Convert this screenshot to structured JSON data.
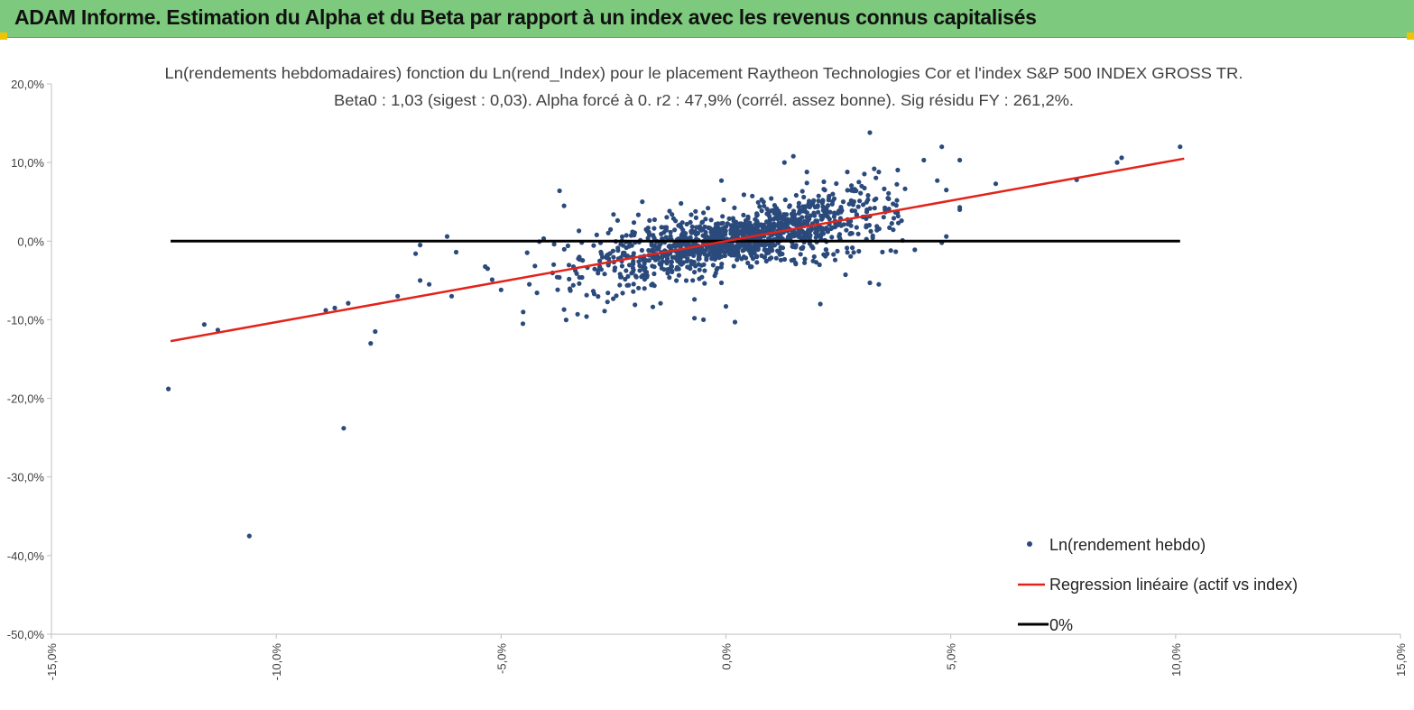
{
  "header": {
    "title": "ADAM Informe. Estimation du Alpha et du Beta par rapport à un index avec les revenus connus capitalisés",
    "color": "#7dc97d"
  },
  "chart_data": {
    "type": "scatter",
    "title_line1": "Ln(rendements hebdomadaires) fonction du Ln(rend_Index) pour le placement Raytheon Technologies Cor et l'index S&P 500 INDEX GROSS TR.",
    "title_line2": "Beta0 : 1,03  (sigest : 0,03).  Alpha forcé à 0. r2 : 47,9% (corrél. assez bonne). Sig résidu FY : 261,2%.",
    "xlim": [
      -0.15,
      0.15
    ],
    "ylim": [
      -0.5,
      0.2
    ],
    "x_ticks": [
      -0.15,
      -0.1,
      -0.05,
      0.0,
      0.05,
      0.1,
      0.15
    ],
    "x_tick_labels": [
      "-15,0%",
      "-10,0%",
      "-5,0%",
      "0,0%",
      "5,0%",
      "10,0%",
      "15,0%"
    ],
    "y_ticks": [
      0.2,
      0.1,
      0.0,
      -0.1,
      -0.2,
      -0.3,
      -0.4,
      -0.5
    ],
    "y_tick_labels": [
      "20,0%",
      "10,0%",
      "0,0%",
      "-10,0%",
      "-20,0%",
      "-30,0%",
      "-40,0%",
      "-50,0%"
    ],
    "beta": 1.03,
    "regression_x_range": [
      -0.1235,
      0.1019
    ],
    "zero_line_x_range": [
      -0.1235,
      0.101
    ],
    "series_colors": {
      "points": "#2b4a7c",
      "regression": "#e3231a",
      "zero": "#000000"
    },
    "legend": {
      "position": "bottom-right",
      "points": "Ln(rendement hebdo)",
      "regression": "Regression linéaire (actif vs index)",
      "zero": "0%"
    },
    "outliers": [
      [
        -0.124,
        -0.188
      ],
      [
        -0.106,
        -0.375
      ],
      [
        -0.085,
        -0.238
      ],
      [
        -0.116,
        -0.106
      ],
      [
        -0.113,
        -0.113
      ],
      [
        -0.079,
        -0.13
      ],
      [
        -0.078,
        -0.115
      ],
      [
        -0.089,
        -0.088
      ],
      [
        -0.087,
        -0.085
      ],
      [
        -0.084,
        -0.079
      ],
      [
        -0.073,
        -0.07
      ],
      [
        -0.069,
        -0.016
      ],
      [
        -0.068,
        -0.005
      ],
      [
        -0.068,
        -0.05
      ],
      [
        -0.066,
        -0.055
      ],
      [
        -0.062,
        0.006
      ],
      [
        -0.061,
        -0.07
      ],
      [
        -0.06,
        -0.014
      ],
      [
        -0.053,
        -0.035
      ],
      [
        -0.052,
        -0.049
      ],
      [
        -0.05,
        -0.062
      ],
      [
        -0.037,
        0.064
      ],
      [
        -0.036,
        0.045
      ],
      [
        -0.036,
        -0.087
      ],
      [
        -0.033,
        -0.093
      ],
      [
        -0.031,
        -0.096
      ],
      [
        -0.027,
        -0.089
      ],
      [
        -0.025,
        0.034
      ],
      [
        -0.012,
        0.034
      ],
      [
        -0.01,
        0.048
      ],
      [
        -0.007,
        -0.098
      ],
      [
        -0.007,
        -0.074
      ],
      [
        -0.005,
        0.036
      ],
      [
        -0.004,
        0.042
      ],
      [
        -0.001,
        0.077
      ],
      [
        0.0,
        -0.083
      ],
      [
        -0.005,
        -0.1
      ],
      [
        0.002,
        -0.103
      ],
      [
        -0.001,
        -0.053
      ],
      [
        0.004,
        0.059
      ],
      [
        0.013,
        0.1
      ],
      [
        0.015,
        0.108
      ],
      [
        0.018,
        0.088
      ],
      [
        0.021,
        -0.08
      ],
      [
        0.022,
        0.065
      ],
      [
        0.018,
        0.074
      ],
      [
        0.027,
        0.088
      ],
      [
        0.032,
        0.138
      ],
      [
        0.034,
        0.088
      ],
      [
        0.032,
        -0.053
      ],
      [
        0.034,
        -0.055
      ],
      [
        0.042,
        -0.011
      ],
      [
        0.044,
        0.103
      ],
      [
        0.047,
        0.077
      ],
      [
        0.048,
        0.12
      ],
      [
        0.049,
        0.065
      ],
      [
        0.052,
        0.103
      ],
      [
        0.049,
        0.006
      ],
      [
        0.048,
        -0.002
      ],
      [
        0.052,
        0.04
      ],
      [
        0.052,
        0.043
      ],
      [
        0.06,
        0.073
      ],
      [
        0.078,
        0.078
      ],
      [
        0.087,
        0.1
      ],
      [
        0.088,
        0.106
      ],
      [
        0.101,
        0.12
      ],
      [
        -0.007,
        -0.007
      ],
      [
        -0.009,
        0.01
      ]
    ],
    "cloud": {
      "description_note": "Dense cluster of weekly log-returns around the origin following the regression slope",
      "count": 1300,
      "x_mean": 0.003,
      "x_std": 0.017,
      "residual_std": 0.025,
      "seed": 12345
    }
  }
}
